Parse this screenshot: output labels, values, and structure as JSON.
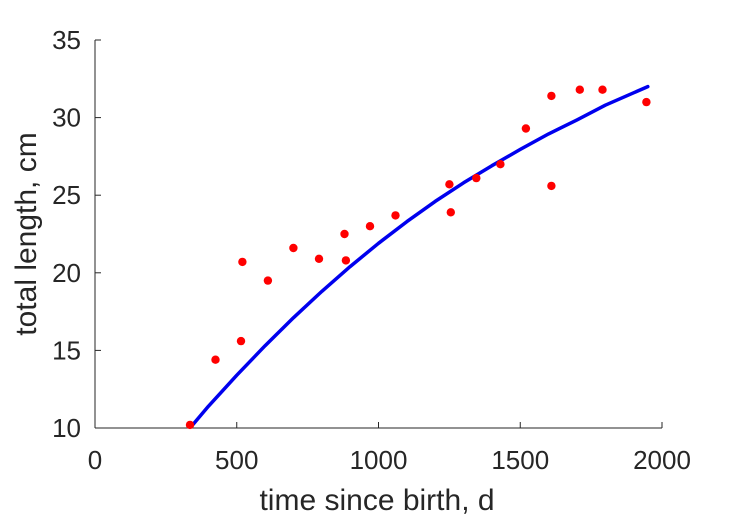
{
  "chart_data": {
    "type": "scatter",
    "title": "",
    "xlabel": "time since birth, d",
    "ylabel": "total length, cm",
    "xlim": [
      0,
      2000
    ],
    "ylim": [
      10,
      35
    ],
    "xticks": [
      0,
      500,
      1000,
      1500,
      2000
    ],
    "yticks": [
      10,
      15,
      20,
      25,
      30,
      35
    ],
    "grid": false,
    "series": [
      {
        "kind": "scatter",
        "color": "#ff0000",
        "points": [
          [
            335,
            10.2
          ],
          [
            425,
            14.4
          ],
          [
            515,
            15.6
          ],
          [
            520,
            20.7
          ],
          [
            610,
            19.5
          ],
          [
            700,
            21.6
          ],
          [
            790,
            20.9
          ],
          [
            880,
            22.5
          ],
          [
            885,
            20.8
          ],
          [
            970,
            23.0
          ],
          [
            1060,
            23.7
          ],
          [
            1250,
            25.7
          ],
          [
            1255,
            23.9
          ],
          [
            1345,
            26.1
          ],
          [
            1430,
            27.0
          ],
          [
            1520,
            29.3
          ],
          [
            1610,
            31.4
          ],
          [
            1610,
            25.6
          ],
          [
            1710,
            31.8
          ],
          [
            1790,
            31.8
          ],
          [
            1945,
            31.0
          ]
        ]
      },
      {
        "kind": "line",
        "color": "#0000ee",
        "points": [
          [
            340,
            10.1
          ],
          [
            400,
            11.4
          ],
          [
            500,
            13.4
          ],
          [
            600,
            15.3
          ],
          [
            700,
            17.1
          ],
          [
            800,
            18.8
          ],
          [
            900,
            20.4
          ],
          [
            1000,
            21.9
          ],
          [
            1100,
            23.3
          ],
          [
            1200,
            24.6
          ],
          [
            1300,
            25.8
          ],
          [
            1400,
            26.9
          ],
          [
            1500,
            27.95
          ],
          [
            1600,
            28.95
          ],
          [
            1700,
            29.85
          ],
          [
            1800,
            30.8
          ],
          [
            1900,
            31.6
          ],
          [
            1950,
            32.0
          ]
        ]
      }
    ]
  }
}
